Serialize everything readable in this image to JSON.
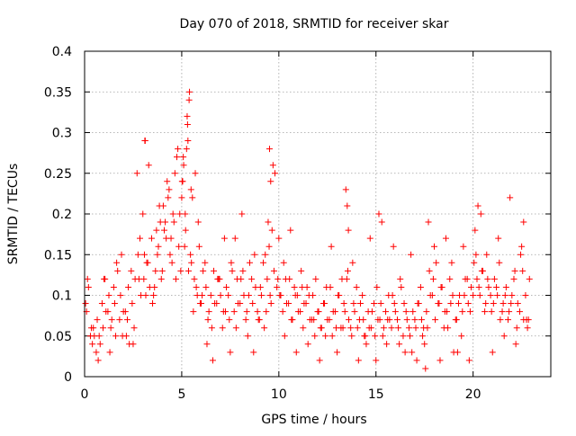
{
  "chart_data": {
    "type": "scatter",
    "title": "Day 070 of 2018, SRMTID for receiver skar",
    "xlabel": "GPS time / hours",
    "ylabel": "SRMTID / TECUs",
    "xlim": [
      0,
      24
    ],
    "ylim": [
      0,
      0.4
    ],
    "xticks": [
      0,
      5,
      10,
      15,
      20
    ],
    "xtick_labels": [
      "0",
      "5",
      "10",
      "15",
      "20"
    ],
    "yticks": [
      0,
      0.05,
      0.1,
      0.15,
      0.2,
      0.25,
      0.3,
      0.35,
      0.4
    ],
    "ytick_labels": [
      "0",
      "0.05",
      "0.1",
      "0.15",
      "0.2",
      "0.25",
      "0.3",
      "0.35",
      "0.4"
    ],
    "grid": true,
    "marker": "plus",
    "color": "#ff0000",
    "series": [
      {
        "name": "SRMTID",
        "x": [
          0.05,
          0.2,
          0.35,
          0.5,
          0.65,
          0.8,
          0.95,
          1.1,
          1.25,
          1.4,
          1.55,
          1.7,
          1.85,
          2.0,
          2.15,
          2.3,
          2.45,
          2.6,
          2.75,
          2.9,
          3.0,
          3.1,
          3.2,
          3.35,
          3.5,
          3.65,
          3.8,
          3.95,
          4.1,
          4.25,
          4.4,
          4.55,
          4.7,
          4.85,
          5.0,
          5.1,
          5.2,
          5.3,
          5.4,
          5.5,
          5.65,
          5.8,
          5.95,
          6.1,
          6.25,
          6.4,
          6.55,
          6.7,
          6.85,
          7.0,
          7.15,
          7.3,
          7.45,
          7.6,
          7.75,
          7.9,
          8.05,
          8.2,
          8.35,
          8.5,
          8.65,
          8.8,
          8.95,
          9.1,
          9.25,
          9.4,
          9.5,
          9.6,
          9.75,
          9.9,
          10.05,
          10.2,
          10.35,
          10.5,
          10.65,
          10.8,
          10.95,
          11.1,
          11.25,
          11.4,
          11.55,
          11.7,
          11.85,
          12.0,
          12.15,
          12.3,
          12.45,
          12.6,
          12.75,
          12.9,
          13.05,
          13.2,
          13.35,
          13.5,
          13.6,
          13.75,
          13.9,
          14.05,
          14.2,
          14.35,
          14.5,
          14.65,
          14.8,
          14.95,
          15.1,
          15.25,
          15.4,
          15.55,
          15.7,
          15.85,
          16.0,
          16.15,
          16.3,
          16.45,
          16.6,
          16.75,
          16.9,
          17.05,
          17.2,
          17.35,
          17.5,
          17.65,
          17.8,
          17.95,
          18.1,
          18.25,
          18.4,
          18.55,
          18.7,
          18.85,
          19.0,
          19.15,
          19.3,
          19.45,
          19.6,
          19.75,
          19.9,
          20.05,
          20.2,
          20.35,
          20.5,
          20.65,
          20.8,
          20.95,
          21.1,
          21.25,
          21.4,
          21.55,
          21.7,
          21.85,
          22.0,
          22.15,
          22.3,
          22.45,
          22.6,
          22.75,
          22.9,
          0.1,
          0.3,
          0.45,
          0.6,
          0.75,
          0.9,
          1.05,
          1.2,
          1.35,
          1.5,
          1.65,
          1.8,
          1.95,
          2.1,
          2.25,
          2.4,
          2.55,
          2.7,
          2.85,
          3.05,
          3.15,
          3.25,
          3.45,
          3.6,
          3.75,
          3.9,
          4.05,
          4.2,
          4.35,
          4.5,
          4.6,
          4.75,
          4.9,
          5.05,
          5.15,
          5.25,
          5.35,
          5.45,
          5.6,
          5.75,
          5.9,
          6.05,
          6.2,
          6.35,
          6.5,
          6.65,
          6.8,
          6.95,
          7.1,
          7.25,
          7.4,
          7.55,
          7.7,
          7.85,
          8.0,
          8.15,
          8.3,
          8.45,
          8.6,
          8.75,
          8.9,
          9.05,
          9.2,
          9.35,
          9.55,
          9.65,
          9.8,
          9.95,
          10.1,
          10.25,
          10.4,
          10.55,
          10.7,
          10.85,
          11.0,
          11.15,
          11.3,
          11.45,
          11.6,
          11.75,
          11.9,
          12.05,
          12.2,
          12.35,
          12.5,
          12.65,
          12.8,
          12.95,
          13.1,
          13.25,
          13.4,
          13.55,
          13.7,
          13.85,
          14.0,
          14.15,
          14.3,
          14.45,
          14.6,
          14.75,
          14.9,
          15.05,
          15.2,
          15.35,
          15.5,
          15.65,
          15.8,
          15.95,
          16.1,
          16.25,
          16.4,
          16.55,
          16.7,
          16.85,
          17.0,
          17.15,
          17.3,
          17.45,
          17.6,
          17.75,
          17.9,
          18.05,
          18.2,
          18.35,
          18.5,
          18.65,
          18.8,
          18.95,
          19.1,
          19.25,
          19.4,
          19.55,
          19.7,
          19.85,
          20.0,
          20.15,
          20.3,
          20.45,
          20.6,
          20.75,
          20.9,
          21.05,
          21.2,
          21.35,
          21.5,
          21.65,
          21.8,
          21.95,
          22.1,
          22.25,
          22.4,
          22.55,
          22.7,
          22.85,
          0.15,
          0.4,
          0.7,
          1.0,
          1.3,
          1.6,
          1.9,
          2.2,
          2.5,
          2.8,
          3.08,
          3.12,
          3.3,
          3.55,
          3.7,
          3.85,
          4.0,
          4.15,
          4.3,
          4.45,
          4.65,
          4.8,
          4.95,
          5.02,
          5.08,
          5.18,
          5.28,
          5.32,
          5.38,
          5.48,
          5.55,
          5.7,
          5.85,
          6.0,
          6.3,
          6.6,
          6.9,
          7.2,
          7.5,
          7.8,
          8.1,
          8.4,
          8.7,
          9.0,
          9.3,
          9.45,
          9.52,
          9.58,
          9.7,
          10.0,
          10.3,
          10.6,
          10.9,
          11.2,
          11.5,
          11.8,
          12.1,
          12.4,
          12.7,
          13.0,
          13.3,
          13.45,
          13.52,
          13.58,
          13.8,
          14.1,
          14.4,
          14.7,
          15.0,
          15.15,
          15.3,
          15.6,
          15.9,
          16.2,
          16.5,
          16.8,
          17.1,
          17.4,
          17.55,
          17.7,
          18.0,
          18.3,
          18.6,
          18.9,
          19.2,
          19.5,
          19.8,
          20.1,
          20.25,
          20.4,
          20.7,
          21.0,
          21.3,
          21.6,
          21.9,
          22.2,
          22.5,
          22.6,
          22.8
        ],
        "y": [
          0.09,
          0.11,
          0.06,
          0.05,
          0.07,
          0.04,
          0.06,
          0.08,
          0.1,
          0.07,
          0.09,
          0.13,
          0.1,
          0.08,
          0.05,
          0.04,
          0.09,
          0.12,
          0.15,
          0.1,
          0.2,
          0.29,
          0.14,
          0.11,
          0.09,
          0.13,
          0.16,
          0.12,
          0.18,
          0.24,
          0.15,
          0.2,
          0.12,
          0.16,
          0.22,
          0.26,
          0.18,
          0.31,
          0.35,
          0.14,
          0.12,
          0.1,
          0.09,
          0.13,
          0.11,
          0.08,
          0.06,
          0.09,
          0.12,
          0.1,
          0.08,
          0.11,
          0.07,
          0.13,
          0.17,
          0.09,
          0.12,
          0.1,
          0.08,
          0.14,
          0.09,
          0.11,
          0.07,
          0.1,
          0.06,
          0.12,
          0.16,
          0.09,
          0.13,
          0.11,
          0.1,
          0.08,
          0.12,
          0.09,
          0.07,
          0.11,
          0.1,
          0.08,
          0.06,
          0.09,
          0.1,
          0.07,
          0.05,
          0.08,
          0.06,
          0.09,
          0.11,
          0.07,
          0.05,
          0.08,
          0.1,
          0.06,
          0.09,
          0.12,
          0.07,
          0.05,
          0.08,
          0.06,
          0.09,
          0.07,
          0.04,
          0.06,
          0.08,
          0.05,
          0.07,
          0.09,
          0.06,
          0.04,
          0.07,
          0.1,
          0.08,
          0.06,
          0.11,
          0.09,
          0.07,
          0.05,
          0.08,
          0.06,
          0.09,
          0.07,
          0.04,
          0.06,
          0.1,
          0.12,
          0.14,
          0.09,
          0.11,
          0.08,
          0.06,
          0.09,
          0.03,
          0.07,
          0.1,
          0.08,
          0.12,
          0.09,
          0.11,
          0.14,
          0.12,
          0.1,
          0.13,
          0.09,
          0.11,
          0.08,
          0.12,
          0.1,
          0.07,
          0.09,
          0.11,
          0.08,
          0.1,
          0.13,
          0.09,
          0.15,
          0.07,
          0.07,
          0.12,
          0.08,
          0.05,
          0.06,
          0.03,
          0.05,
          0.09,
          0.12,
          0.08,
          0.06,
          0.11,
          0.14,
          0.07,
          0.05,
          0.08,
          0.11,
          0.13,
          0.06,
          0.25,
          0.17,
          0.12,
          0.1,
          0.14,
          0.17,
          0.11,
          0.15,
          0.19,
          0.21,
          0.17,
          0.23,
          0.14,
          0.19,
          0.27,
          0.2,
          0.24,
          0.16,
          0.28,
          0.13,
          0.15,
          0.08,
          0.11,
          0.16,
          0.1,
          0.14,
          0.07,
          0.1,
          0.13,
          0.09,
          0.12,
          0.06,
          0.08,
          0.1,
          0.14,
          0.08,
          0.12,
          0.09,
          0.13,
          0.07,
          0.1,
          0.12,
          0.15,
          0.08,
          0.11,
          0.14,
          0.08,
          0.1,
          0.18,
          0.25,
          0.12,
          0.1,
          0.14,
          0.09,
          0.12,
          0.07,
          0.1,
          0.08,
          0.13,
          0.09,
          0.11,
          0.07,
          0.1,
          0.12,
          0.08,
          0.06,
          0.09,
          0.07,
          0.11,
          0.08,
          0.06,
          0.1,
          0.12,
          0.08,
          0.13,
          0.06,
          0.09,
          0.11,
          0.07,
          0.1,
          0.05,
          0.08,
          0.06,
          0.09,
          0.11,
          0.07,
          0.05,
          0.08,
          0.1,
          0.06,
          0.09,
          0.07,
          0.12,
          0.05,
          0.08,
          0.06,
          0.03,
          0.07,
          0.09,
          0.11,
          0.06,
          0.08,
          0.13,
          0.1,
          0.07,
          0.09,
          0.11,
          0.06,
          0.08,
          0.12,
          0.1,
          0.07,
          0.09,
          0.05,
          0.1,
          0.12,
          0.08,
          0.1,
          0.15,
          0.11,
          0.13,
          0.08,
          0.12,
          0.1,
          0.09,
          0.11,
          0.14,
          0.08,
          0.1,
          0.07,
          0.09,
          0.12,
          0.06,
          0.08,
          0.13,
          0.1,
          0.07,
          0.12,
          0.04,
          0.02,
          0.12,
          0.03,
          0.05,
          0.15,
          0.07,
          0.04,
          0.12,
          0.15,
          0.29,
          0.26,
          0.1,
          0.18,
          0.21,
          0.13,
          0.19,
          0.22,
          0.17,
          0.25,
          0.28,
          0.13,
          0.24,
          0.27,
          0.2,
          0.32,
          0.29,
          0.34,
          0.23,
          0.22,
          0.25,
          0.19,
          0.09,
          0.04,
          0.02,
          0.12,
          0.17,
          0.03,
          0.06,
          0.2,
          0.05,
          0.03,
          0.07,
          0.15,
          0.19,
          0.28,
          0.24,
          0.26,
          0.17,
          0.05,
          0.18,
          0.03,
          0.11,
          0.04,
          0.07,
          0.02,
          0.05,
          0.16,
          0.03,
          0.06,
          0.23,
          0.21,
          0.18,
          0.14,
          0.02,
          0.05,
          0.17,
          0.02,
          0.2,
          0.19,
          0.07,
          0.16,
          0.04,
          0.03,
          0.15,
          0.02,
          0.05,
          0.01,
          0.19,
          0.16,
          0.02,
          0.17,
          0.14,
          0.03,
          0.16,
          0.02,
          0.18,
          0.21,
          0.2,
          0.15,
          0.03,
          0.17,
          0.05,
          0.22,
          0.04,
          0.16,
          0.19,
          0.06
        ]
      }
    ]
  }
}
